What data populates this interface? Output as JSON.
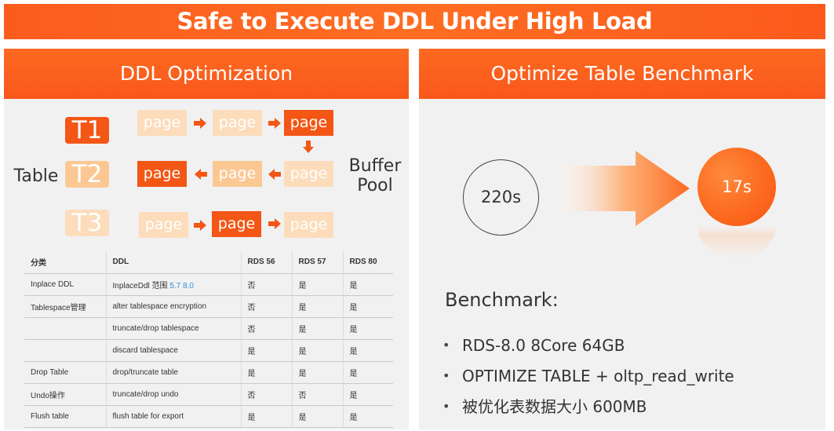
{
  "title": "Safe to Execute DDL Under High Load",
  "left_panel": {
    "heading": "DDL Optimization",
    "table_label": "Table",
    "buffer_label_line1": "Buffer",
    "buffer_label_line2": "Pool",
    "rows": [
      {
        "label": "T1",
        "pages": [
          "page",
          "page",
          "page"
        ]
      },
      {
        "label": "T2",
        "pages": [
          "page",
          "page",
          "page"
        ]
      },
      {
        "label": "T3",
        "pages": [
          "page",
          "page",
          "page"
        ]
      }
    ],
    "colors": {
      "dark": "#f35615",
      "light": "#fbc893",
      "pale": "#fcdcba"
    }
  },
  "ddl_table": {
    "headers": [
      "分类",
      "DDL",
      "RDS 56",
      "RDS 57",
      "RDS 80"
    ],
    "rows": [
      [
        "Inplace DDL",
        "InplaceDdl 范围",
        "否",
        "是",
        "是"
      ],
      [
        "Tablespace管理",
        "alter tablespace encryption",
        "否",
        "是",
        "是"
      ],
      [
        "",
        "truncate/drop tablespace",
        "否",
        "是",
        "是"
      ],
      [
        "",
        "discard tablespace",
        "是",
        "是",
        "是"
      ],
      [
        "Drop Table",
        "drop/truncate table",
        "是",
        "是",
        "是"
      ],
      [
        "Undo操作",
        "truncate/drop undo",
        "否",
        "否",
        "是"
      ],
      [
        "Flush table",
        "flush table for export",
        "是",
        "是",
        "是"
      ]
    ],
    "inplace_highlight": "5.7 8.0"
  },
  "right_panel": {
    "heading": "Optimize Table Benchmark",
    "before_value": "220s",
    "after_value": "17s",
    "benchmark_title": "Benchmark:",
    "bullets": [
      "RDS-8.0 8Core 64GB",
      "OPTIMIZE TABLE + oltp_read_write",
      "被优化表数据大小 600MB"
    ]
  }
}
